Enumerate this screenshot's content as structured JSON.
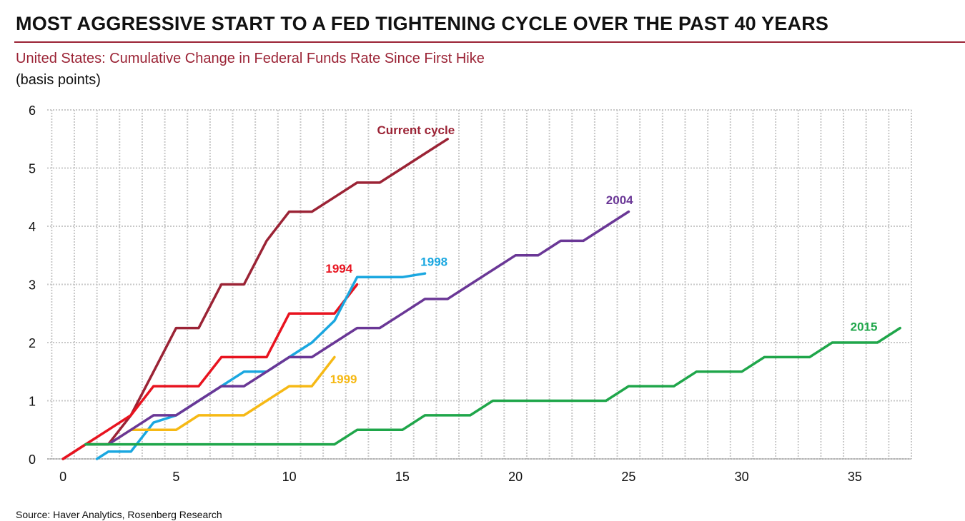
{
  "header": {
    "title": "MOST AGGRESSIVE START TO A FED TIGHTENING CYCLE OVER THE PAST 40 YEARS",
    "subtitle": "United States: Cumulative Change in Federal Funds Rate Since First Hike",
    "unit": "(basis points)"
  },
  "footer": {
    "source": "Source: Haver Analytics, Rosenberg Research"
  },
  "chart_data": {
    "type": "line",
    "title": "MOST AGGRESSIVE START TO A FED TIGHTENING CYCLE OVER THE PAST 40 YEARS",
    "xlim": [
      -0.7,
      37.5
    ],
    "ylim": [
      0,
      6
    ],
    "x_ticks": [
      0,
      5,
      10,
      15,
      20,
      25,
      30,
      35
    ],
    "y_ticks": [
      0,
      1,
      2,
      3,
      4,
      5,
      6
    ],
    "grid": true,
    "legend": "none",
    "series": [
      {
        "name": "Current cycle",
        "color": "#9b2335",
        "x": [
          0,
          1,
          2,
          3,
          4,
          5,
          6,
          7,
          8,
          9,
          10,
          11,
          12,
          13,
          14,
          15,
          16,
          17
        ],
        "y": [
          0,
          0.25,
          0.25,
          0.75,
          1.5,
          2.25,
          2.25,
          3.0,
          3.0,
          3.75,
          4.25,
          4.25,
          4.5,
          4.75,
          4.75,
          5.0,
          5.25,
          5.5
        ]
      },
      {
        "name": "1994",
        "color": "#e8131f",
        "x": [
          0,
          1,
          2,
          3,
          4,
          5,
          6,
          7,
          8,
          9,
          10,
          11,
          12,
          13
        ],
        "y": [
          0,
          0.25,
          0.5,
          0.75,
          1.25,
          1.25,
          1.25,
          1.75,
          1.75,
          1.75,
          2.5,
          2.5,
          2.5,
          3.0
        ]
      },
      {
        "name": "1998",
        "color": "#1aa7e0",
        "x": [
          1.5,
          2,
          3,
          4,
          5,
          6,
          7,
          8,
          9,
          10,
          11,
          12,
          13,
          14,
          15,
          16
        ],
        "y": [
          0,
          0.125,
          0.125,
          0.625,
          0.75,
          1.0,
          1.25,
          1.5,
          1.5,
          1.75,
          2.0,
          2.375,
          3.125,
          3.125,
          3.125,
          3.1875
        ]
      },
      {
        "name": "1999",
        "color": "#f6b915",
        "x": [
          1,
          2,
          3,
          4,
          5,
          6,
          7,
          8,
          9,
          10,
          11,
          12
        ],
        "y": [
          0.25,
          0.25,
          0.5,
          0.5,
          0.5,
          0.75,
          0.75,
          0.75,
          1.0,
          1.25,
          1.25,
          1.75
        ]
      },
      {
        "name": "2004",
        "color": "#6a3796",
        "x": [
          1,
          2,
          3,
          4,
          5,
          6,
          7,
          8,
          9,
          10,
          11,
          12,
          13,
          14,
          15,
          16,
          17,
          18,
          19,
          20,
          21,
          22,
          23,
          24,
          25
        ],
        "y": [
          0.25,
          0.25,
          0.5,
          0.75,
          0.75,
          1.0,
          1.25,
          1.25,
          1.5,
          1.75,
          1.75,
          2.0,
          2.25,
          2.25,
          2.5,
          2.75,
          2.75,
          3.0,
          3.25,
          3.5,
          3.5,
          3.75,
          3.75,
          4.0,
          4.25
        ]
      },
      {
        "name": "2015",
        "color": "#1fa64a",
        "x": [
          1,
          12,
          13,
          14,
          15,
          16,
          17,
          18,
          19,
          20,
          21,
          22,
          23,
          24,
          25,
          26,
          27,
          28,
          29,
          30,
          31,
          32,
          33,
          34,
          35,
          36,
          37
        ],
        "y": [
          0.25,
          0.25,
          0.5,
          0.5,
          0.5,
          0.75,
          0.75,
          0.75,
          1.0,
          1.0,
          1.0,
          1.0,
          1.0,
          1.0,
          1.25,
          1.25,
          1.25,
          1.5,
          1.5,
          1.5,
          1.75,
          1.75,
          1.75,
          2.0,
          2.0,
          2.0,
          2.25
        ]
      }
    ],
    "annotations": [
      {
        "text": "Current cycle",
        "color": "#9b2335",
        "x": 15.6,
        "y": 5.58
      },
      {
        "text": "1994",
        "color": "#e8131f",
        "x": 12.2,
        "y": 3.2
      },
      {
        "text": "1998",
        "color": "#1aa7e0",
        "x": 16.4,
        "y": 3.32
      },
      {
        "text": "1999",
        "color": "#f6b915",
        "x": 12.4,
        "y": 1.3
      },
      {
        "text": "2004",
        "color": "#6a3796",
        "x": 24.6,
        "y": 4.38
      },
      {
        "text": "2015",
        "color": "#1fa64a",
        "x": 35.4,
        "y": 2.2
      }
    ]
  }
}
